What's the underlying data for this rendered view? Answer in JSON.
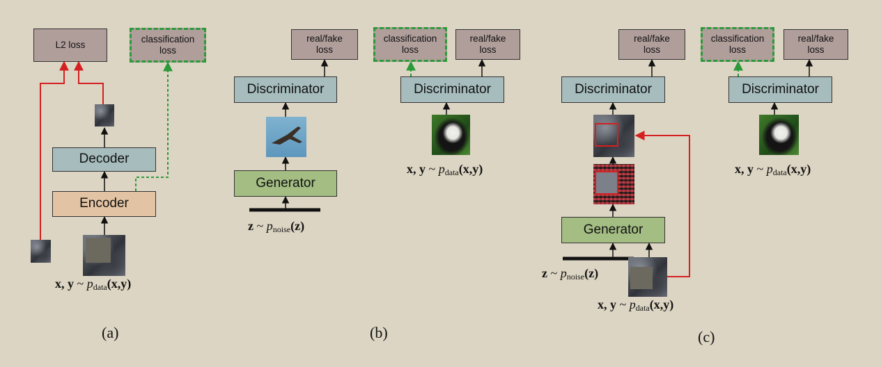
{
  "panel_a": {
    "l2_loss": "L2 loss",
    "classification_loss": "classification\nloss",
    "decoder": "Decoder",
    "encoder": "Encoder",
    "math": {
      "bold": "x, y",
      "tilde": "~",
      "p": "p",
      "sub": "data",
      "args": "(x,y)"
    },
    "caption": "(a)"
  },
  "panel_b": {
    "real_fake_1": "real/fake\nloss",
    "classification_loss": "classification\nloss",
    "real_fake_2": "real/fake\nloss",
    "discriminator_1": "Discriminator",
    "discriminator_2": "Discriminator",
    "generator": "Generator",
    "z_math": {
      "bold": "z",
      "tilde": "~",
      "p": "p",
      "sub": "noise",
      "args": "(z)"
    },
    "xy_math": {
      "bold": "x, y",
      "tilde": "~",
      "p": "p",
      "sub": "data",
      "args": "(x,y)"
    },
    "caption": "(b)"
  },
  "panel_c": {
    "real_fake_1": "real/fake\nloss",
    "classification_loss": "classification\nloss",
    "real_fake_2": "real/fake\nloss",
    "discriminator_1": "Discriminator",
    "discriminator_2": "Discriminator",
    "generator": "Generator",
    "z_math": {
      "bold": "z",
      "tilde": "~",
      "p": "p",
      "sub": "noise",
      "args": "(z)"
    },
    "xy_math_1": {
      "bold": "x, y",
      "tilde": "~",
      "p": "p",
      "sub": "data",
      "args": "(x,y)"
    },
    "xy_math_2": {
      "bold": "x, y",
      "tilde": "~",
      "p": "p",
      "sub": "data",
      "args": "(x,y)"
    },
    "caption": "(c)"
  },
  "colors": {
    "background": "#ddd5c3",
    "loss_box": "#b09e9b",
    "discriminator_box": "#a6bcbd",
    "encoder_box": "#e2c3a3",
    "generator_box": "#a3bd83",
    "red_arrow": "#d42020",
    "green_dashed": "#2a9a3a"
  }
}
